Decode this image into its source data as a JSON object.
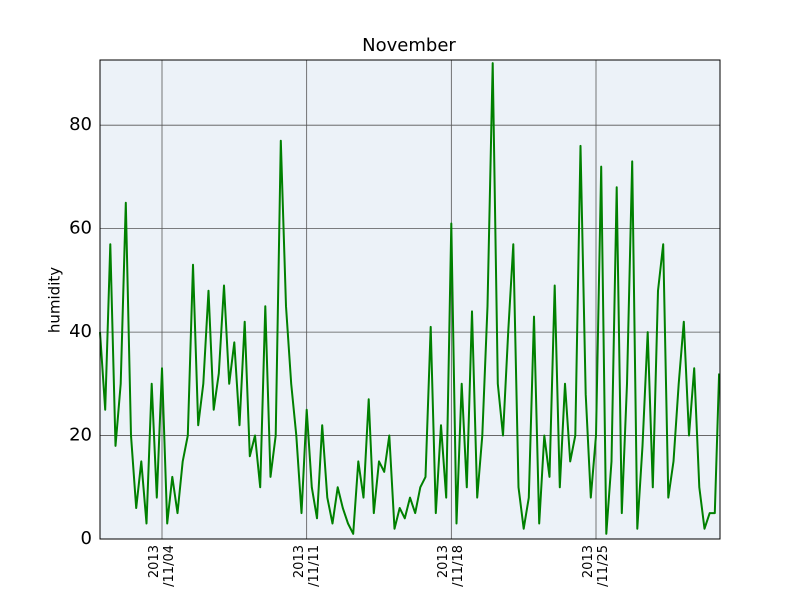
{
  "chart_data": {
    "type": "line",
    "title": "November",
    "ylabel": "humidity",
    "x": [
      "2013-11-01T00:00",
      "2013-11-01T06:00",
      "2013-11-01T12:00",
      "2013-11-01T18:00",
      "2013-11-02T00:00",
      "2013-11-02T06:00",
      "2013-11-02T12:00",
      "2013-11-02T18:00",
      "2013-11-03T00:00",
      "2013-11-03T06:00",
      "2013-11-03T12:00",
      "2013-11-03T18:00",
      "2013-11-04T00:00",
      "2013-11-04T06:00",
      "2013-11-04T12:00",
      "2013-11-04T18:00",
      "2013-11-05T00:00",
      "2013-11-05T06:00",
      "2013-11-05T12:00",
      "2013-11-05T18:00",
      "2013-11-06T00:00",
      "2013-11-06T06:00",
      "2013-11-06T12:00",
      "2013-11-06T18:00",
      "2013-11-07T00:00",
      "2013-11-07T06:00",
      "2013-11-07T12:00",
      "2013-11-07T18:00",
      "2013-11-08T00:00",
      "2013-11-08T06:00",
      "2013-11-08T12:00",
      "2013-11-08T18:00",
      "2013-11-09T00:00",
      "2013-11-09T06:00",
      "2013-11-09T12:00",
      "2013-11-09T18:00",
      "2013-11-10T00:00",
      "2013-11-10T06:00",
      "2013-11-10T12:00",
      "2013-11-10T18:00",
      "2013-11-11T00:00",
      "2013-11-11T06:00",
      "2013-11-11T12:00",
      "2013-11-11T18:00",
      "2013-11-12T00:00",
      "2013-11-12T06:00",
      "2013-11-12T12:00",
      "2013-11-12T18:00",
      "2013-11-13T00:00",
      "2013-11-13T06:00",
      "2013-11-13T12:00",
      "2013-11-13T18:00",
      "2013-11-14T00:00",
      "2013-11-14T06:00",
      "2013-11-14T12:00",
      "2013-11-14T18:00",
      "2013-11-15T00:00",
      "2013-11-15T06:00",
      "2013-11-15T12:00",
      "2013-11-15T18:00",
      "2013-11-16T00:00",
      "2013-11-16T06:00",
      "2013-11-16T12:00",
      "2013-11-16T18:00",
      "2013-11-17T00:00",
      "2013-11-17T06:00",
      "2013-11-17T12:00",
      "2013-11-17T18:00",
      "2013-11-18T00:00",
      "2013-11-18T06:00",
      "2013-11-18T12:00",
      "2013-11-18T18:00",
      "2013-11-19T00:00",
      "2013-11-19T06:00",
      "2013-11-19T12:00",
      "2013-11-19T18:00",
      "2013-11-20T00:00",
      "2013-11-20T06:00",
      "2013-11-20T12:00",
      "2013-11-20T18:00",
      "2013-11-21T00:00",
      "2013-11-21T06:00",
      "2013-11-21T12:00",
      "2013-11-21T18:00",
      "2013-11-22T00:00",
      "2013-11-22T06:00",
      "2013-11-22T12:00",
      "2013-11-22T18:00",
      "2013-11-23T00:00",
      "2013-11-23T06:00",
      "2013-11-23T12:00",
      "2013-11-23T18:00",
      "2013-11-24T00:00",
      "2013-11-24T06:00",
      "2013-11-24T12:00",
      "2013-11-24T18:00",
      "2013-11-25T00:00",
      "2013-11-25T06:00",
      "2013-11-25T12:00",
      "2013-11-25T18:00",
      "2013-11-26T00:00",
      "2013-11-26T06:00",
      "2013-11-26T12:00",
      "2013-11-26T18:00",
      "2013-11-27T00:00",
      "2013-11-27T06:00",
      "2013-11-27T12:00",
      "2013-11-27T18:00",
      "2013-11-28T00:00",
      "2013-11-28T06:00",
      "2013-11-28T12:00",
      "2013-11-28T18:00",
      "2013-11-29T00:00",
      "2013-11-29T06:00",
      "2013-11-29T12:00",
      "2013-11-29T18:00",
      "2013-11-30T00:00",
      "2013-11-30T06:00",
      "2013-11-30T12:00",
      "2013-11-30T18:00",
      "2013-11-30T23:00"
    ],
    "series": [
      {
        "color": "#008000",
        "values": [
          40,
          25,
          57,
          18,
          30,
          65,
          20,
          6,
          15,
          3,
          30,
          8,
          33,
          3,
          12,
          5,
          15,
          20,
          53,
          22,
          30,
          48,
          25,
          32,
          49,
          30,
          38,
          22,
          42,
          16,
          20,
          10,
          45,
          12,
          20,
          77,
          45,
          30,
          20,
          5,
          25,
          10,
          4,
          22,
          8,
          3,
          10,
          6,
          3,
          1,
          15,
          8,
          27,
          5,
          15,
          13,
          20,
          2,
          6,
          4,
          8,
          5,
          10,
          12,
          41,
          5,
          22,
          8,
          61,
          3,
          30,
          10,
          44,
          8,
          20,
          45,
          92,
          30,
          20,
          40,
          57,
          10,
          2,
          8,
          43,
          3,
          20,
          12,
          49,
          10,
          30,
          15,
          20,
          76,
          28,
          8,
          20,
          72,
          1,
          15,
          68,
          5,
          30,
          73,
          2,
          18,
          40,
          10,
          48,
          57,
          8,
          15,
          30,
          42,
          20,
          33,
          10,
          2,
          5,
          5,
          32
        ]
      }
    ],
    "xlim": [
      "2013-11-01T00:00",
      "2013-12-01T00:00"
    ],
    "xticks": [
      {
        "value": "2013-11-04T00:00",
        "label": "2013\n/11/04"
      },
      {
        "value": "2013-11-11T00:00",
        "label": "2013\n/11/11"
      },
      {
        "value": "2013-11-18T00:00",
        "label": "2013\n/11/18"
      },
      {
        "value": "2013-11-25T00:00",
        "label": "2013\n/11/25"
      }
    ],
    "ylim": [
      0,
      92.6
    ],
    "yticks": [
      0,
      20,
      40,
      60,
      80
    ],
    "grid": true
  }
}
